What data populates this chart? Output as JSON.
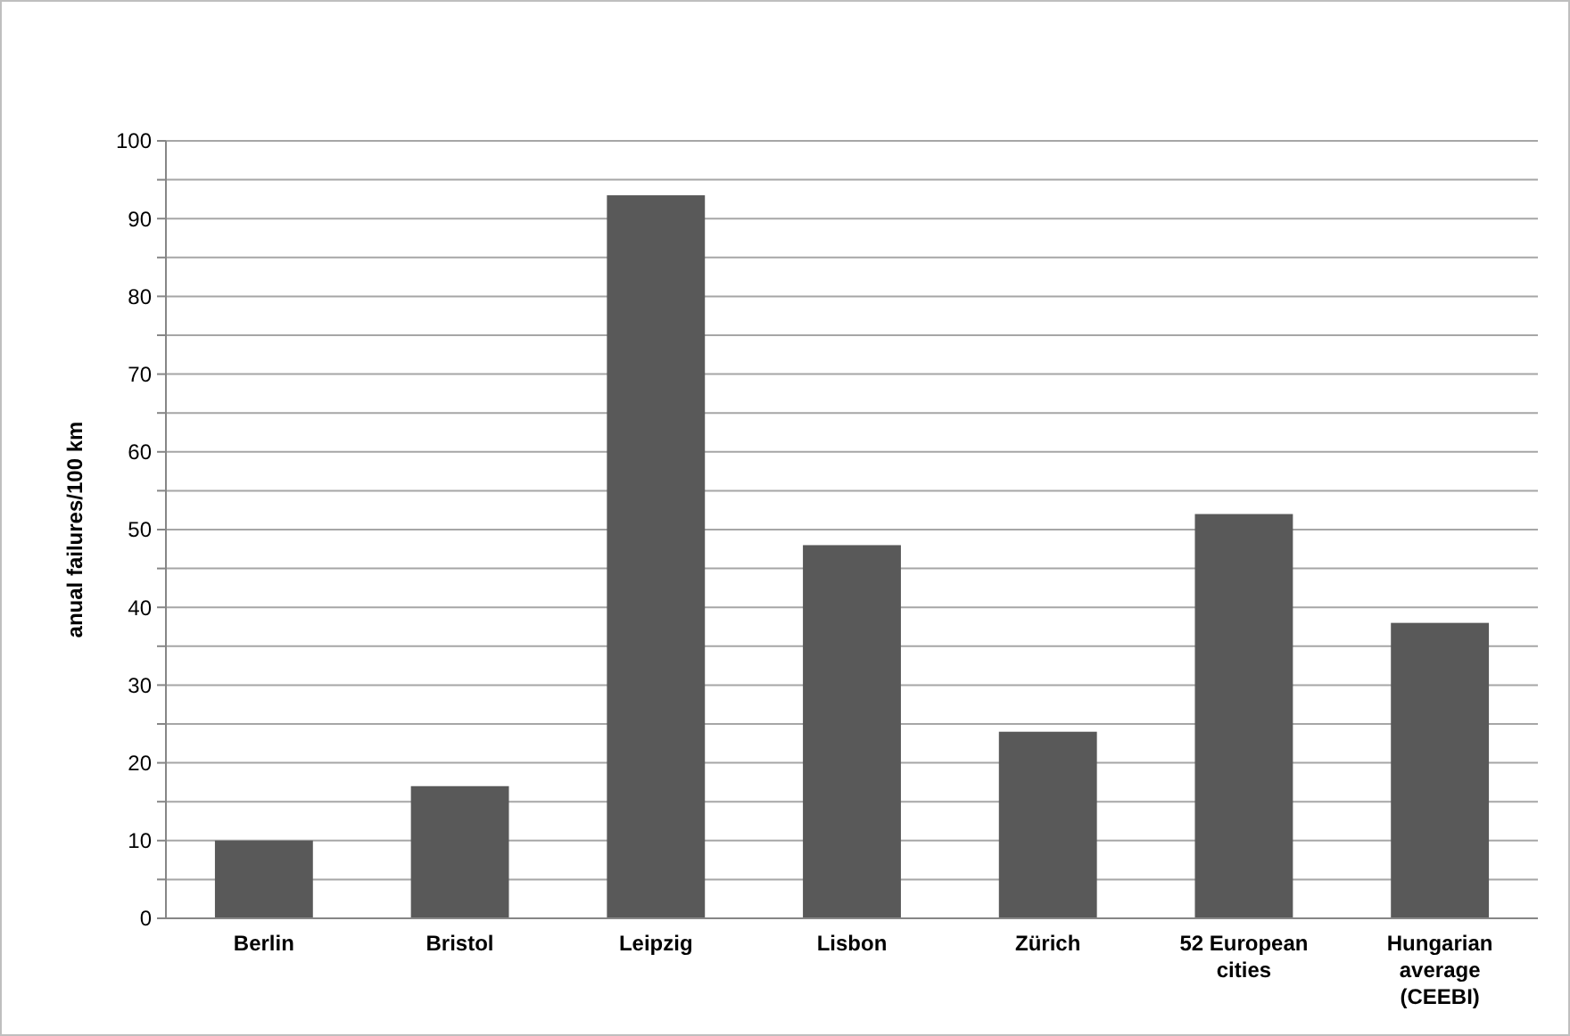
{
  "chart_data": {
    "type": "bar",
    "ylabel": "anual failures/100 km",
    "categories": [
      "Berlin",
      "Bristol",
      "Leipzig",
      "Lisbon",
      "Zürich",
      "52 European cities",
      "Hungarian average (CEEBI)"
    ],
    "values": [
      10,
      17,
      93,
      48,
      24,
      52,
      38
    ],
    "color": "#595959",
    "ylim": [
      0,
      100
    ],
    "yticks": [
      0,
      {
        "value": 5,
        "label": null
      },
      10,
      {
        "value": 15,
        "label": null
      },
      20,
      {
        "value": 25,
        "label": null
      },
      30,
      {
        "value": 35,
        "label": null
      },
      40,
      {
        "value": 45,
        "label": null
      },
      50,
      {
        "value": 55,
        "label": null
      },
      60,
      {
        "value": 65,
        "label": null
      },
      70,
      {
        "value": 75,
        "label": null
      },
      80,
      {
        "value": 85,
        "label": null
      },
      90,
      {
        "value": 95,
        "label": null
      },
      100
    ],
    "grid": true
  }
}
